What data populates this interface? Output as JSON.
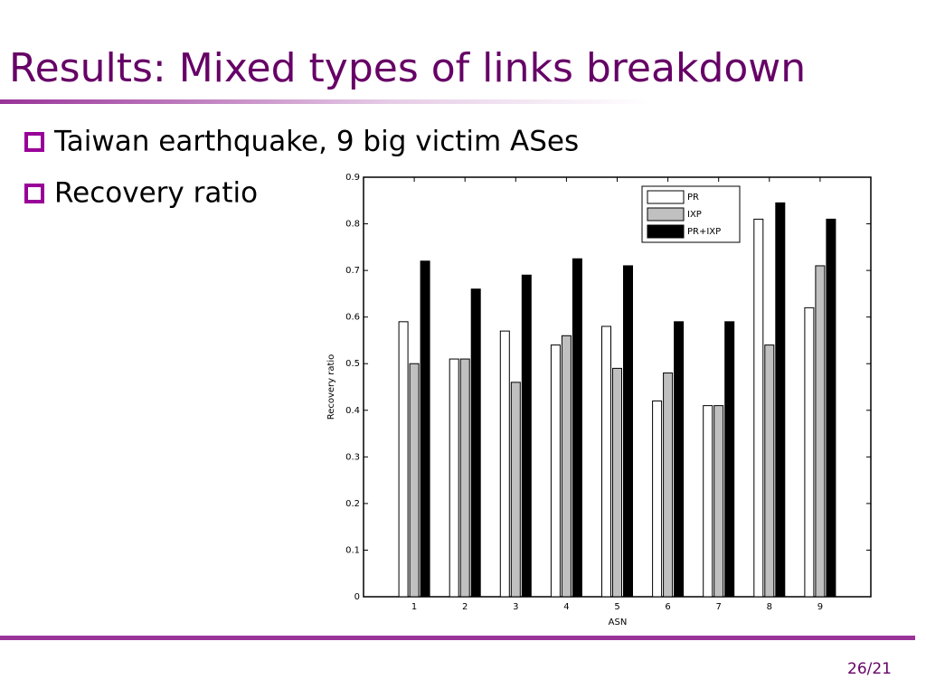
{
  "title": "Results: Mixed types of links breakdown",
  "bullets": [
    "Taiwan earthquake, 9 big victim ASes",
    "Recovery ratio"
  ],
  "page_number": "26/21",
  "chart_data": {
    "type": "bar",
    "x": [
      1,
      2,
      3,
      4,
      5,
      6,
      7,
      8,
      9
    ],
    "xlim": [
      0,
      10
    ],
    "xticks": [
      1,
      2,
      3,
      4,
      5,
      6,
      7,
      8,
      9
    ],
    "ylim": [
      0,
      0.9
    ],
    "yticks": [
      0,
      0.1,
      0.2,
      0.3,
      0.4,
      0.5,
      0.6,
      0.7,
      0.8,
      0.9
    ],
    "x_label": "ASN",
    "y_label": "Recovery ratio",
    "legend": "upper right",
    "series": [
      {
        "name": "PR",
        "color": "#ffffff",
        "values": [
          0.59,
          0.51,
          0.57,
          0.54,
          0.58,
          0.42,
          0.41,
          0.81,
          0.62
        ]
      },
      {
        "name": "IXP",
        "color": "#c0c0c0",
        "values": [
          0.5,
          0.51,
          0.46,
          0.56,
          0.49,
          0.48,
          0.41,
          0.54,
          0.71
        ]
      },
      {
        "name": "PR+IXP",
        "color": "#000000",
        "values": [
          0.72,
          0.66,
          0.69,
          0.725,
          0.71,
          0.59,
          0.59,
          0.845,
          0.81
        ]
      }
    ]
  }
}
